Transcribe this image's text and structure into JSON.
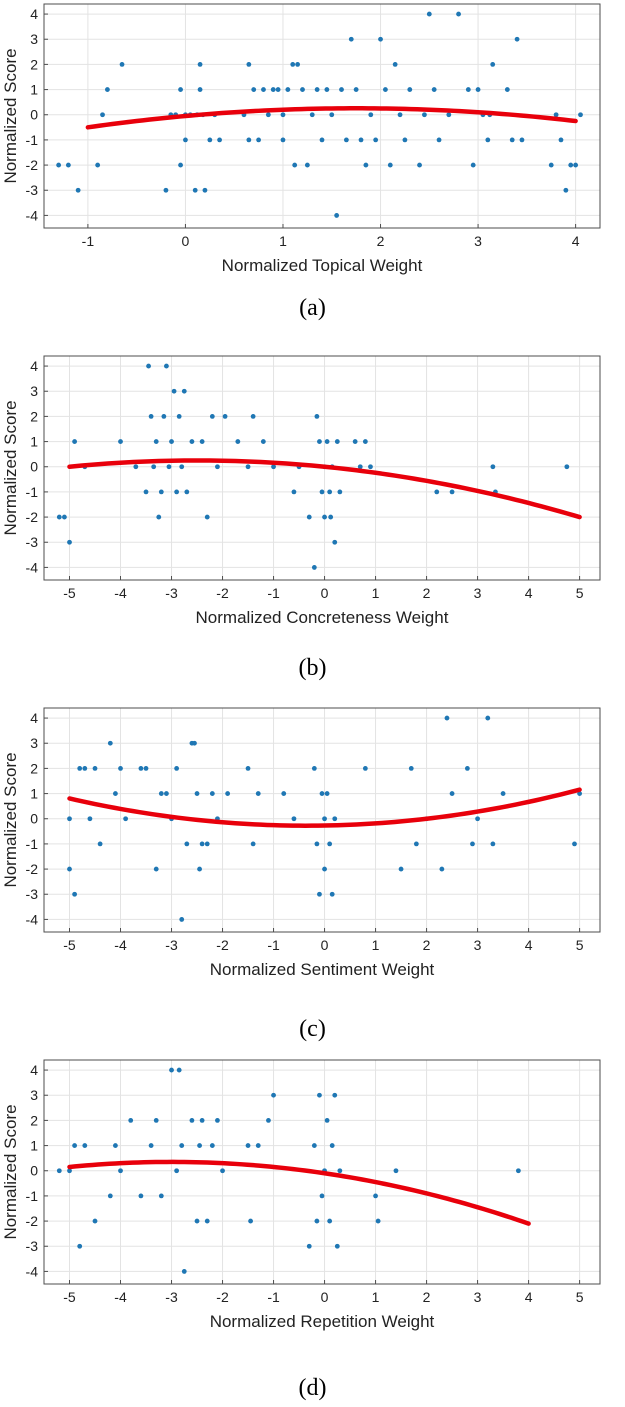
{
  "chart_data": [
    {
      "type": "scatter",
      "panel": "(a)",
      "caption": "(a)",
      "xlabel": "Normalized Topical Weight",
      "ylabel": "Normalized Score",
      "xlim": [
        -1.45,
        4.25
      ],
      "ylim": [
        -4.5,
        4.4
      ],
      "xticks": [
        -1,
        0,
        1,
        2,
        3,
        4
      ],
      "yticks": [
        -4,
        -3,
        -2,
        -1,
        0,
        1,
        2,
        3,
        4
      ],
      "xtick_labels": [
        "-1",
        "0",
        "1",
        "2",
        "3",
        "4"
      ],
      "ytick_labels": [
        "-4",
        "-3",
        "-2",
        "-1",
        "0",
        "1",
        "2",
        "3",
        "4"
      ],
      "grid": true,
      "scatter_color": "#1f77b4",
      "fit_color": "#e8000b",
      "fit": {
        "type": "quadratic",
        "coeffs": [
          -0.1,
          0.35,
          -0.05
        ],
        "x_range": [
          -1,
          4
        ]
      },
      "points": [
        [
          -1.3,
          -2
        ],
        [
          -1.2,
          -2
        ],
        [
          -1.1,
          -3
        ],
        [
          -0.9,
          -2
        ],
        [
          -0.85,
          0
        ],
        [
          -0.8,
          1
        ],
        [
          -0.65,
          2
        ],
        [
          -0.2,
          -3
        ],
        [
          -0.15,
          0
        ],
        [
          -0.1,
          0
        ],
        [
          -0.05,
          -2
        ],
        [
          -0.05,
          1
        ],
        [
          0,
          0
        ],
        [
          0,
          -1
        ],
        [
          0.05,
          0
        ],
        [
          0.1,
          -3
        ],
        [
          0.12,
          0
        ],
        [
          0.15,
          2
        ],
        [
          0.15,
          1
        ],
        [
          0.18,
          0
        ],
        [
          0.2,
          -3
        ],
        [
          0.25,
          -1
        ],
        [
          0.3,
          0
        ],
        [
          0.35,
          -1
        ],
        [
          0.6,
          0
        ],
        [
          0.65,
          2
        ],
        [
          0.65,
          -1
        ],
        [
          0.7,
          1
        ],
        [
          0.75,
          -1
        ],
        [
          0.8,
          1
        ],
        [
          0.85,
          0
        ],
        [
          0.9,
          1
        ],
        [
          0.95,
          1
        ],
        [
          1,
          0
        ],
        [
          1,
          -1
        ],
        [
          1.05,
          1
        ],
        [
          1.1,
          2
        ],
        [
          1.12,
          -2
        ],
        [
          1.15,
          2
        ],
        [
          1.2,
          1
        ],
        [
          1.25,
          -2
        ],
        [
          1.3,
          0
        ],
        [
          1.35,
          1
        ],
        [
          1.4,
          -1
        ],
        [
          1.45,
          1
        ],
        [
          1.5,
          0
        ],
        [
          1.55,
          -4
        ],
        [
          1.6,
          1
        ],
        [
          1.65,
          -1
        ],
        [
          1.7,
          3
        ],
        [
          1.75,
          1
        ],
        [
          1.8,
          -1
        ],
        [
          1.85,
          -2
        ],
        [
          1.9,
          0
        ],
        [
          1.95,
          -1
        ],
        [
          2,
          3
        ],
        [
          2.05,
          1
        ],
        [
          2.1,
          -2
        ],
        [
          2.15,
          2
        ],
        [
          2.2,
          0
        ],
        [
          2.25,
          -1
        ],
        [
          2.3,
          1
        ],
        [
          2.4,
          -2
        ],
        [
          2.45,
          0
        ],
        [
          2.5,
          4
        ],
        [
          2.55,
          1
        ],
        [
          2.6,
          -1
        ],
        [
          2.7,
          0
        ],
        [
          2.8,
          4
        ],
        [
          2.9,
          1
        ],
        [
          2.95,
          -2
        ],
        [
          3,
          1
        ],
        [
          3.05,
          0
        ],
        [
          3.1,
          -1
        ],
        [
          3.12,
          0
        ],
        [
          3.15,
          2
        ],
        [
          3.3,
          1
        ],
        [
          3.35,
          -1
        ],
        [
          3.4,
          3
        ],
        [
          3.45,
          -1
        ],
        [
          3.75,
          -2
        ],
        [
          3.8,
          0
        ],
        [
          3.85,
          -1
        ],
        [
          3.9,
          -3
        ],
        [
          3.95,
          -2
        ],
        [
          4,
          -2
        ],
        [
          4.05,
          0
        ]
      ]
    },
    {
      "type": "scatter",
      "panel": "(b)",
      "caption": "(b)",
      "xlabel": "Normalized Concreteness Weight",
      "ylabel": "Normalized Score",
      "xlim": [
        -5.5,
        5.4
      ],
      "ylim": [
        -4.5,
        4.4
      ],
      "xticks": [
        -5,
        -4,
        -3,
        -2,
        -1,
        0,
        1,
        2,
        3,
        4,
        5
      ],
      "yticks": [
        -4,
        -3,
        -2,
        -1,
        0,
        1,
        2,
        3,
        4
      ],
      "xtick_labels": [
        "-5",
        "-4",
        "-3",
        "-2",
        "-1",
        "0",
        "1",
        "2",
        "3",
        "4",
        "5"
      ],
      "ytick_labels": [
        "-4",
        "-3",
        "-2",
        "-1",
        "0",
        "1",
        "2",
        "3",
        "4"
      ],
      "grid": true,
      "scatter_color": "#1f77b4",
      "fit_color": "#e8000b",
      "fit": {
        "type": "quadratic",
        "coeffs": [
          -0.04,
          -0.2,
          0
        ],
        "x_range": [
          -5,
          5
        ]
      },
      "points": [
        [
          -5.2,
          -2
        ],
        [
          -5.1,
          -2
        ],
        [
          -5,
          -3
        ],
        [
          -4.9,
          1
        ],
        [
          -4.7,
          0
        ],
        [
          -4,
          1
        ],
        [
          -3.7,
          0
        ],
        [
          -3.5,
          -1
        ],
        [
          -3.45,
          4
        ],
        [
          -3.4,
          2
        ],
        [
          -3.35,
          0
        ],
        [
          -3.3,
          1
        ],
        [
          -3.25,
          -2
        ],
        [
          -3.2,
          -1
        ],
        [
          -3.15,
          2
        ],
        [
          -3.1,
          4
        ],
        [
          -3.05,
          0
        ],
        [
          -3,
          1
        ],
        [
          -2.95,
          3
        ],
        [
          -2.9,
          -1
        ],
        [
          -2.85,
          2
        ],
        [
          -2.8,
          0
        ],
        [
          -2.75,
          3
        ],
        [
          -2.7,
          -1
        ],
        [
          -2.6,
          1
        ],
        [
          -2.4,
          1
        ],
        [
          -2.3,
          -2
        ],
        [
          -2.2,
          2
        ],
        [
          -2.1,
          0
        ],
        [
          -1.95,
          2
        ],
        [
          -1.7,
          1
        ],
        [
          -1.5,
          0
        ],
        [
          -1.4,
          2
        ],
        [
          -1.2,
          1
        ],
        [
          -1,
          0
        ],
        [
          -0.6,
          -1
        ],
        [
          -0.5,
          0
        ],
        [
          -0.3,
          -2
        ],
        [
          -0.2,
          -4
        ],
        [
          -0.15,
          2
        ],
        [
          -0.1,
          1
        ],
        [
          -0.05,
          -1
        ],
        [
          0,
          0
        ],
        [
          0,
          -2
        ],
        [
          0.05,
          1
        ],
        [
          0.1,
          -1
        ],
        [
          0.12,
          -2
        ],
        [
          0.15,
          0
        ],
        [
          0.2,
          -3
        ],
        [
          0.25,
          1
        ],
        [
          0.3,
          -1
        ],
        [
          0.6,
          1
        ],
        [
          0.7,
          0
        ],
        [
          0.8,
          1
        ],
        [
          0.9,
          0
        ],
        [
          2.2,
          -1
        ],
        [
          2.5,
          -1
        ],
        [
          3.3,
          0
        ],
        [
          3.35,
          -1
        ],
        [
          4.75,
          0
        ]
      ]
    },
    {
      "type": "scatter",
      "panel": "(c)",
      "caption": "(c)",
      "xlabel": "Normalized Sentiment Weight",
      "ylabel": "Normalized Score",
      "xlim": [
        -5.5,
        5.4
      ],
      "ylim": [
        -4.5,
        4.4
      ],
      "xticks": [
        -5,
        -4,
        -3,
        -2,
        -1,
        0,
        1,
        2,
        3,
        4,
        5
      ],
      "yticks": [
        -4,
        -3,
        -2,
        -1,
        0,
        1,
        2,
        3,
        4
      ],
      "xtick_labels": [
        "-5",
        "-4",
        "-3",
        "-2",
        "-1",
        "0",
        "1",
        "2",
        "3",
        "4",
        "5"
      ],
      "ytick_labels": [
        "-4",
        "-3",
        "-2",
        "-1",
        "0",
        "1",
        "2",
        "3",
        "4"
      ],
      "grid": true,
      "scatter_color": "#1f77b4",
      "fit_color": "#e8000b",
      "fit": {
        "type": "quadratic",
        "coeffs": [
          0.05,
          0.035,
          -0.27
        ],
        "x_range": [
          -5,
          5
        ]
      },
      "points": [
        [
          -5,
          0
        ],
        [
          -5,
          -2
        ],
        [
          -4.9,
          -3
        ],
        [
          -4.8,
          2
        ],
        [
          -4.7,
          2
        ],
        [
          -4.6,
          0
        ],
        [
          -4.5,
          2
        ],
        [
          -4.4,
          -1
        ],
        [
          -4.2,
          3
        ],
        [
          -4.1,
          1
        ],
        [
          -4,
          2
        ],
        [
          -3.9,
          0
        ],
        [
          -3.6,
          2
        ],
        [
          -3.5,
          2
        ],
        [
          -3.3,
          -2
        ],
        [
          -3.2,
          1
        ],
        [
          -3.1,
          1
        ],
        [
          -3,
          0
        ],
        [
          -2.9,
          2
        ],
        [
          -2.8,
          -4
        ],
        [
          -2.7,
          -1
        ],
        [
          -2.6,
          3
        ],
        [
          -2.55,
          3
        ],
        [
          -2.5,
          1
        ],
        [
          -2.45,
          -2
        ],
        [
          -2.4,
          -1
        ],
        [
          -2.3,
          -1
        ],
        [
          -2.2,
          1
        ],
        [
          -2.1,
          0
        ],
        [
          -1.9,
          1
        ],
        [
          -1.5,
          2
        ],
        [
          -1.4,
          -1
        ],
        [
          -1.3,
          1
        ],
        [
          -0.8,
          1
        ],
        [
          -0.6,
          0
        ],
        [
          -0.2,
          2
        ],
        [
          -0.15,
          -1
        ],
        [
          -0.1,
          -3
        ],
        [
          -0.05,
          1
        ],
        [
          0,
          0
        ],
        [
          0,
          -2
        ],
        [
          0.05,
          1
        ],
        [
          0.1,
          -1
        ],
        [
          0.15,
          -3
        ],
        [
          0.2,
          0
        ],
        [
          0.8,
          2
        ],
        [
          1.5,
          -2
        ],
        [
          1.7,
          2
        ],
        [
          1.8,
          -1
        ],
        [
          2,
          0
        ],
        [
          2.3,
          -2
        ],
        [
          2.4,
          4
        ],
        [
          2.5,
          1
        ],
        [
          2.8,
          2
        ],
        [
          2.9,
          -1
        ],
        [
          3,
          0
        ],
        [
          3.2,
          4
        ],
        [
          3.3,
          -1
        ],
        [
          3.5,
          1
        ],
        [
          4.9,
          -1
        ],
        [
          5,
          1
        ]
      ]
    },
    {
      "type": "scatter",
      "panel": "(d)",
      "caption": "(d)",
      "xlabel": "Normalized Repetition Weight",
      "ylabel": "Normalized Score",
      "xlim": [
        -5.5,
        5.4
      ],
      "ylim": [
        -4.5,
        4.4
      ],
      "xticks": [
        -5,
        -4,
        -3,
        -2,
        -1,
        0,
        1,
        2,
        3,
        4,
        5
      ],
      "yticks": [
        -4,
        -3,
        -2,
        -1,
        0,
        1,
        2,
        3,
        4
      ],
      "xtick_labels": [
        "-5",
        "-4",
        "-3",
        "-2",
        "-1",
        "0",
        "1",
        "2",
        "3",
        "4",
        "5"
      ],
      "ytick_labels": [
        "-4",
        "-3",
        "-2",
        "-1",
        "0",
        "1",
        "2",
        "3",
        "4"
      ],
      "grid": true,
      "scatter_color": "#1f77b4",
      "fit_color": "#e8000b",
      "fit": {
        "type": "quadratic",
        "coeffs": [
          -0.05,
          -0.3,
          -0.1
        ],
        "x_range": [
          -5,
          4
        ]
      },
      "points": [
        [
          -5.2,
          0
        ],
        [
          -5,
          0
        ],
        [
          -4.9,
          1
        ],
        [
          -4.8,
          -3
        ],
        [
          -4.7,
          1
        ],
        [
          -4.5,
          -2
        ],
        [
          -4.2,
          -1
        ],
        [
          -4.1,
          1
        ],
        [
          -4,
          0
        ],
        [
          -3.8,
          2
        ],
        [
          -3.6,
          -1
        ],
        [
          -3.4,
          1
        ],
        [
          -3.3,
          2
        ],
        [
          -3.2,
          -1
        ],
        [
          -3,
          4
        ],
        [
          -2.9,
          0
        ],
        [
          -2.85,
          4
        ],
        [
          -2.8,
          1
        ],
        [
          -2.75,
          -4
        ],
        [
          -2.6,
          2
        ],
        [
          -2.5,
          -2
        ],
        [
          -2.45,
          1
        ],
        [
          -2.4,
          2
        ],
        [
          -2.3,
          -2
        ],
        [
          -2.2,
          1
        ],
        [
          -2.1,
          2
        ],
        [
          -2,
          0
        ],
        [
          -1.5,
          1
        ],
        [
          -1.45,
          -2
        ],
        [
          -1.3,
          1
        ],
        [
          -1.1,
          2
        ],
        [
          -1,
          3
        ],
        [
          -0.3,
          -3
        ],
        [
          -0.2,
          1
        ],
        [
          -0.15,
          -2
        ],
        [
          -0.1,
          3
        ],
        [
          -0.05,
          -1
        ],
        [
          0,
          0
        ],
        [
          0.05,
          2
        ],
        [
          0.1,
          -2
        ],
        [
          0.15,
          1
        ],
        [
          0.2,
          3
        ],
        [
          0.25,
          -3
        ],
        [
          0.3,
          0
        ],
        [
          1,
          -1
        ],
        [
          1.05,
          -2
        ],
        [
          1.4,
          0
        ],
        [
          3.8,
          0
        ]
      ]
    }
  ]
}
